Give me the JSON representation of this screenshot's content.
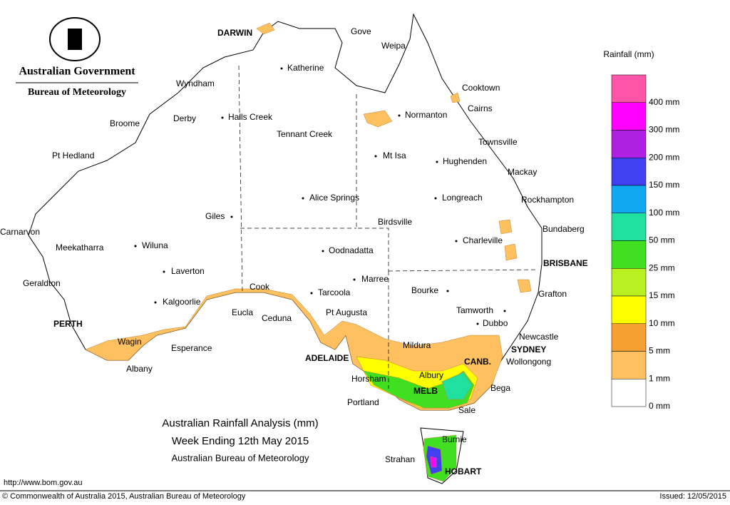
{
  "header": {
    "agency": "Australian Government",
    "bureau": "Bureau of Meteorology"
  },
  "title": {
    "line1": "Australian Rainfall Analysis (mm)",
    "line2": "Week Ending 12th May 2015",
    "line3": "Australian Bureau of Meteorology"
  },
  "legend": {
    "title": "Rainfall (mm)",
    "items": [
      {
        "label": "400 mm",
        "color": "#ff55a8"
      },
      {
        "label": "300 mm",
        "color": "#ff00ff"
      },
      {
        "label": "200 mm",
        "color": "#b020e0"
      },
      {
        "label": "150 mm",
        "color": "#4040f0"
      },
      {
        "label": "100 mm",
        "color": "#10a8f0"
      },
      {
        "label": "50 mm",
        "color": "#20e0a0"
      },
      {
        "label": "25 mm",
        "color": "#40e020"
      },
      {
        "label": "15 mm",
        "color": "#b8f020"
      },
      {
        "label": "10 mm",
        "color": "#ffff00"
      },
      {
        "label": "5 mm",
        "color": "#f5a030"
      },
      {
        "label": "1 mm",
        "color": "#ffc060"
      },
      {
        "label": "0 mm",
        "color": "#ffffff"
      }
    ]
  },
  "places": [
    "DARWIN",
    "Gove",
    "Weipa",
    "Katherine",
    "Wyndham",
    "Cooktown",
    "Cairns",
    "Normanton",
    "Broome",
    "Derby",
    "Halls Creek",
    "Tennant Creek",
    "Townsville",
    "Pt Hedland",
    "Mt Isa",
    "Hughenden",
    "Mackay",
    "Alice Springs",
    "Longreach",
    "Rockhampton",
    "Giles",
    "Birdsville",
    "Bundaberg",
    "Carnarvon",
    "Charleville",
    "Meekatharra",
    "Wiluna",
    "Oodnadatta",
    "BRISBANE",
    "Laverton",
    "Marree",
    "Geraldton",
    "Cook",
    "Bourke",
    "Tarcoola",
    "Grafton",
    "Kalgoorlie",
    "Pt Augusta",
    "Tamworth",
    "Eucla",
    "Ceduna",
    "Dubbo",
    "PERTH",
    "Newcastle",
    "Wagin",
    "Mildura",
    "Esperance",
    "SYDNEY",
    "ADELAIDE",
    "Wollongong",
    "CANB.",
    "Albany",
    "Albury",
    "Horsham",
    "Bega",
    "MELB",
    "Portland",
    "Sale",
    "Burnie",
    "Strahan",
    "HOBART"
  ],
  "footer": {
    "url": "http://www.bom.gov.au",
    "copyright": "© Commonwealth of Australia 2015, Australian Bureau of Meteorology",
    "issued": "Issued: 12/05/2015"
  }
}
